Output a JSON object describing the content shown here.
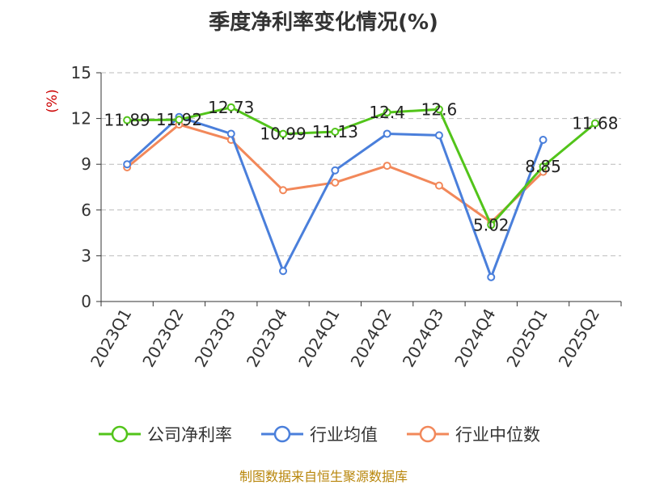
{
  "chart_data": {
    "type": "line",
    "title": "季度净利率变化情况(%)",
    "ylabel": "(%)",
    "categories": [
      "2023Q1",
      "2023Q2",
      "2023Q3",
      "2023Q4",
      "2024Q1",
      "2024Q2",
      "2024Q3",
      "2024Q4",
      "2025Q1",
      "2025Q2"
    ],
    "ylim": [
      0,
      15
    ],
    "yticks": [
      0,
      3,
      6,
      9,
      12,
      15
    ],
    "grid": true,
    "legend_position": "bottom",
    "series": [
      {
        "name": "公司净利率",
        "color": "#52c41a",
        "values": [
          11.89,
          11.92,
          12.73,
          10.99,
          11.13,
          12.4,
          12.6,
          5.02,
          8.85,
          11.68
        ],
        "labels": [
          "11.89",
          "11.92",
          "12.73",
          "10.99",
          "11.13",
          "12.4",
          "12.6",
          "5.02",
          "8.85",
          "11.68"
        ]
      },
      {
        "name": "行业均值",
        "color": "#4a7fdb",
        "values": [
          9.0,
          12.1,
          11.0,
          2.0,
          8.6,
          11.0,
          10.9,
          1.6,
          10.6,
          null
        ]
      },
      {
        "name": "行业中位数",
        "color": "#f2885a",
        "values": [
          8.8,
          11.6,
          10.6,
          7.3,
          7.8,
          8.9,
          7.6,
          5.2,
          8.5,
          null
        ]
      }
    ]
  },
  "source": "制图数据来自恒生聚源数据库"
}
